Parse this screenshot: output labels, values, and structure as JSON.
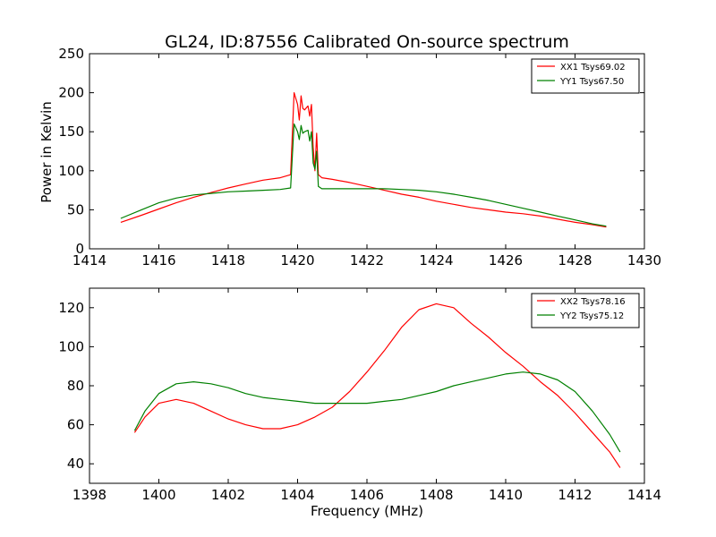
{
  "chart_data": [
    {
      "type": "line",
      "title": "GL24, ID:87556 Calibrated On-source spectrum",
      "xlabel": "",
      "ylabel": "Power in Kelvin",
      "xlim": [
        1414,
        1430
      ],
      "ylim": [
        0,
        250
      ],
      "xticks": [
        1414,
        1416,
        1418,
        1420,
        1422,
        1424,
        1426,
        1428,
        1430
      ],
      "yticks": [
        0,
        50,
        100,
        150,
        200,
        250
      ],
      "grid": false,
      "legend_position": "top-right",
      "series": [
        {
          "name": "XX1 Tsys69.02",
          "color": "#ff0000",
          "x": [
            1414.9,
            1415.5,
            1416,
            1416.5,
            1417,
            1417.5,
            1418,
            1418.5,
            1419,
            1419.5,
            1419.8,
            1419.9,
            1420.0,
            1420.05,
            1420.1,
            1420.15,
            1420.2,
            1420.3,
            1420.35,
            1420.4,
            1420.45,
            1420.5,
            1420.55,
            1420.6,
            1420.7,
            1421,
            1421.5,
            1422,
            1422.5,
            1423,
            1423.5,
            1424,
            1424.5,
            1425,
            1425.5,
            1426,
            1426.5,
            1427,
            1427.5,
            1428,
            1428.5,
            1428.9
          ],
          "values": [
            34,
            43,
            51,
            59,
            66,
            72,
            78,
            83,
            88,
            91,
            95,
            200,
            185,
            165,
            196,
            180,
            178,
            183,
            170,
            185,
            130,
            100,
            148,
            95,
            91,
            89,
            85,
            80,
            75,
            70,
            66,
            61,
            57,
            53,
            50,
            47,
            45,
            42,
            38,
            34,
            31,
            28
          ]
        },
        {
          "name": "YY1 Tsys67.50",
          "color": "#008000",
          "x": [
            1414.9,
            1415.5,
            1416,
            1416.5,
            1417,
            1417.5,
            1418,
            1418.5,
            1419,
            1419.5,
            1419.8,
            1419.9,
            1420.0,
            1420.05,
            1420.1,
            1420.15,
            1420.2,
            1420.3,
            1420.35,
            1420.4,
            1420.45,
            1420.5,
            1420.55,
            1420.6,
            1420.7,
            1421,
            1421.5,
            1422,
            1422.5,
            1423,
            1423.5,
            1424,
            1424.5,
            1425,
            1425.5,
            1426,
            1426.5,
            1427,
            1427.5,
            1428,
            1428.5,
            1428.9
          ],
          "values": [
            39,
            50,
            59,
            65,
            69,
            71,
            73,
            74,
            75,
            76,
            78,
            160,
            150,
            140,
            158,
            148,
            150,
            152,
            138,
            150,
            110,
            102,
            125,
            80,
            77,
            77,
            77,
            77,
            77,
            76,
            75,
            73,
            70,
            66,
            62,
            57,
            52,
            47,
            42,
            37,
            32,
            29
          ]
        }
      ]
    },
    {
      "type": "line",
      "title": "",
      "xlabel": "Frequency (MHz)",
      "ylabel": "",
      "xlim": [
        1398,
        1414
      ],
      "ylim": [
        30,
        130
      ],
      "xticks": [
        1398,
        1400,
        1402,
        1404,
        1406,
        1408,
        1410,
        1412,
        1414
      ],
      "yticks": [
        40,
        60,
        80,
        100,
        120
      ],
      "grid": false,
      "legend_position": "top-right",
      "series": [
        {
          "name": "XX2 Tsys78.16",
          "color": "#ff0000",
          "x": [
            1399.3,
            1399.6,
            1400,
            1400.5,
            1401,
            1401.5,
            1402,
            1402.5,
            1403,
            1403.5,
            1404,
            1404.5,
            1405,
            1405.5,
            1406,
            1406.5,
            1407,
            1407.5,
            1408,
            1408.5,
            1409,
            1409.5,
            1410,
            1410.5,
            1411,
            1411.5,
            1412,
            1412.5,
            1413,
            1413.3
          ],
          "values": [
            56,
            64,
            71,
            73,
            71,
            67,
            63,
            60,
            58,
            58,
            60,
            64,
            69,
            77,
            87,
            98,
            110,
            119,
            122,
            120,
            112,
            105,
            97,
            90,
            82,
            75,
            66,
            56,
            46,
            38
          ]
        },
        {
          "name": "YY2 Tsys75.12",
          "color": "#008000",
          "x": [
            1399.3,
            1399.6,
            1400,
            1400.5,
            1401,
            1401.5,
            1402,
            1402.5,
            1403,
            1403.5,
            1404,
            1404.5,
            1405,
            1405.5,
            1406,
            1406.5,
            1407,
            1407.5,
            1408,
            1408.5,
            1409,
            1409.5,
            1410,
            1410.5,
            1411,
            1411.5,
            1412,
            1412.5,
            1413,
            1413.3
          ],
          "values": [
            57,
            67,
            76,
            81,
            82,
            81,
            79,
            76,
            74,
            73,
            72,
            71,
            71,
            71,
            71,
            72,
            73,
            75,
            77,
            80,
            82,
            84,
            86,
            87,
            86,
            83,
            77,
            67,
            55,
            46
          ]
        }
      ]
    }
  ]
}
